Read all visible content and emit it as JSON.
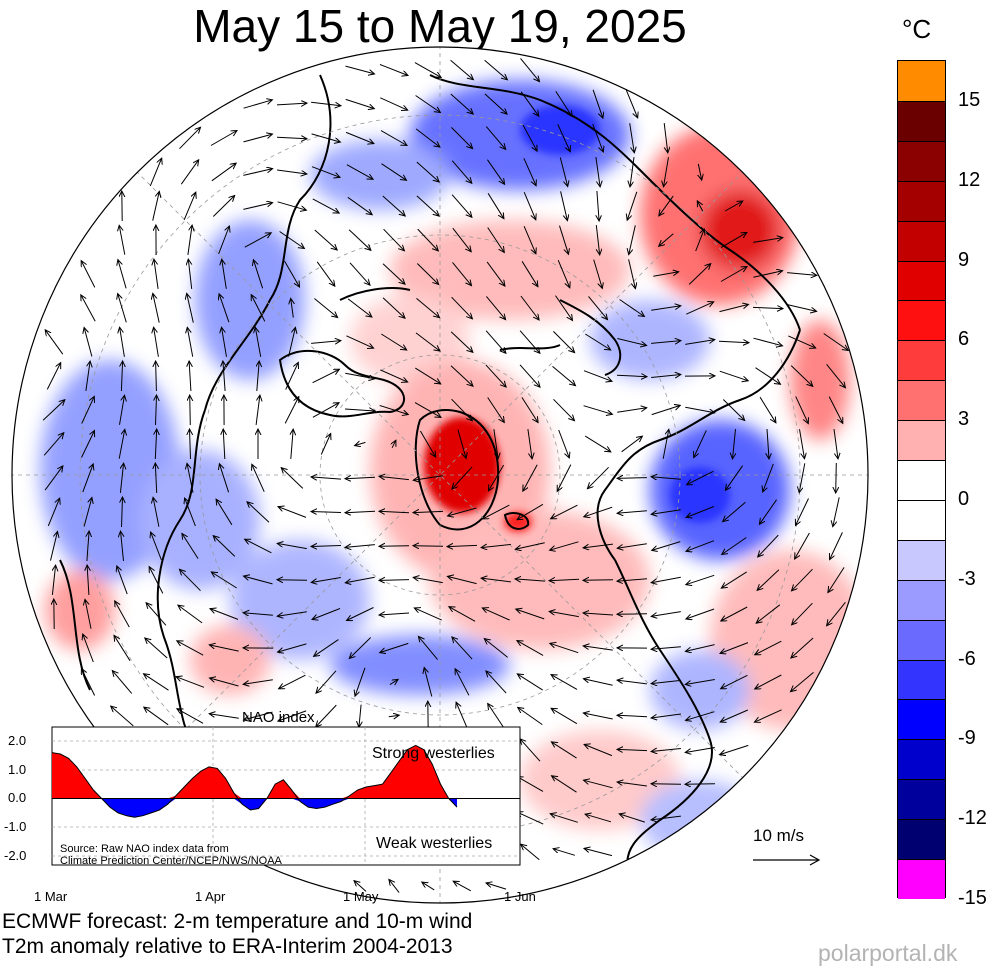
{
  "title": "May 15 to May 19, 2025",
  "colorbar": {
    "unit": "°C",
    "ticks": [
      "15",
      "12",
      "9",
      "6",
      "3",
      "0",
      "-3",
      "-6",
      "-9",
      "-12",
      "-15"
    ],
    "colors": [
      "#ff8c00",
      "#6b0000",
      "#8b0000",
      "#a50000",
      "#c30000",
      "#e00000",
      "#ff1010",
      "#ff3c3c",
      "#ff7070",
      "#ffb0b0",
      "#ffffff",
      "#ffffff",
      "#c8c8ff",
      "#9a9aff",
      "#6a6aff",
      "#3434ff",
      "#0000ff",
      "#0000cc",
      "#00009c",
      "#000070",
      "#ff00ff"
    ]
  },
  "nao": {
    "title": "NAO index",
    "yticks": [
      "2.0",
      "1.0",
      "0.0",
      "-1.0",
      "-2.0"
    ],
    "xticks": [
      "1 Mar",
      "1 Apr",
      "1 May",
      "1 Jun"
    ],
    "strong_label": "Strong westerlies",
    "weak_label": "Weak westerlies",
    "source_line1": "Source: Raw NAO index data from",
    "source_line2": "Climate Prediction Center/NCEP/NWS/NOAA",
    "series": [
      1.6,
      1.55,
      1.4,
      1.1,
      0.7,
      0.3,
      0.0,
      -0.3,
      -0.5,
      -0.6,
      -0.65,
      -0.6,
      -0.5,
      -0.4,
      -0.2,
      0.1,
      0.4,
      0.7,
      0.95,
      1.1,
      1.05,
      0.7,
      0.2,
      -0.2,
      -0.4,
      -0.35,
      0.0,
      0.5,
      0.65,
      0.3,
      -0.1,
      -0.3,
      -0.35,
      -0.3,
      -0.2,
      -0.1,
      0.1,
      0.3,
      0.4,
      0.45,
      0.5,
      0.9,
      1.3,
      1.7,
      1.85,
      1.7,
      1.2,
      0.5,
      0.0,
      -0.3
    ]
  },
  "scale": {
    "label": "10 m/s"
  },
  "footer": {
    "line1": "ECMWF forecast: 2-m temperature and 10-m wind",
    "line2": "T2m anomaly relative to ERA-Interim 2004-2013",
    "brand": "polarportal.dk"
  }
}
